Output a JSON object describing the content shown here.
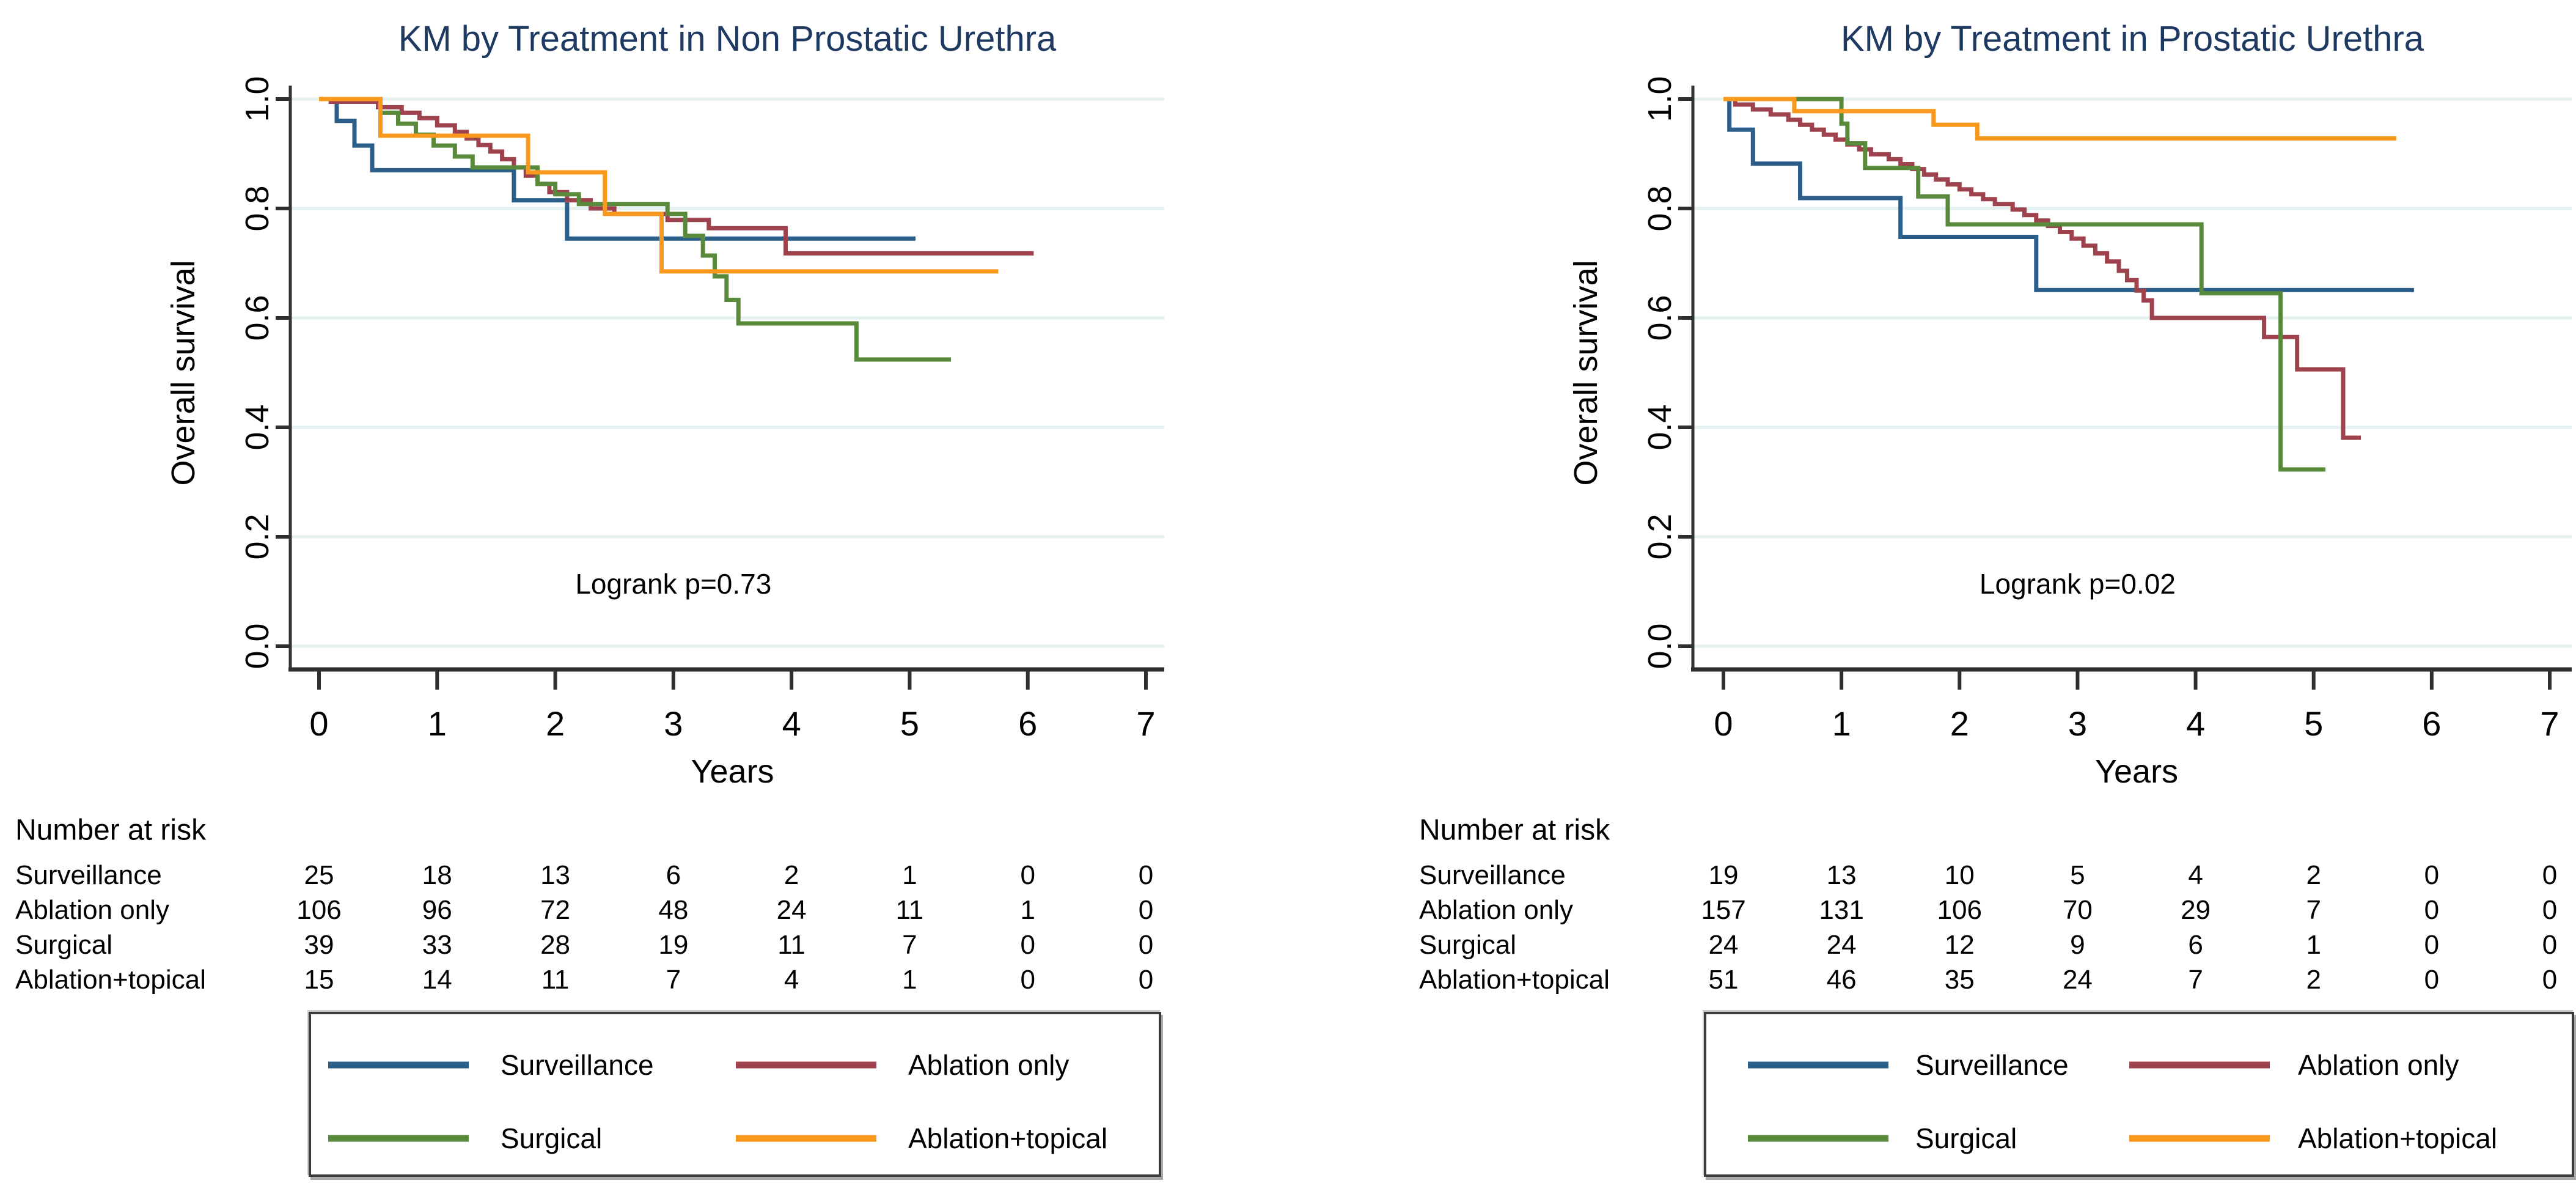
{
  "page": {
    "background": "#ffffff"
  },
  "colors": {
    "title_text": "#1e3a62",
    "axis_line": "#333333",
    "tick_text": "#000000",
    "gridline": "#e5f0f0",
    "legend_border": "#3b3b3b",
    "surveillance": "#2b5f8a",
    "ablation_only": "#9e424e",
    "surgical": "#598a3c",
    "ablation_topical": "#f8981d"
  },
  "panels": [
    {
      "title": "KM by Treatment in Non Prostatic Urethra",
      "ylabel": "Overall survival",
      "xlabel": "Years",
      "annotation": "Logrank p=0.73",
      "risk_header": "Number at risk",
      "x_ticks": [
        "0",
        "1",
        "2",
        "3",
        "4",
        "5",
        "6",
        "7"
      ],
      "y_ticks": [
        "0.0",
        "0.2",
        "0.4",
        "0.6",
        "0.8",
        "1.0"
      ],
      "risk_rows": [
        {
          "label": "Surveillance",
          "counts": [
            25,
            18,
            13,
            6,
            2,
            1,
            0,
            0
          ]
        },
        {
          "label": "Ablation only",
          "counts": [
            106,
            96,
            72,
            48,
            24,
            11,
            1,
            0
          ]
        },
        {
          "label": "Surgical",
          "counts": [
            39,
            33,
            28,
            19,
            11,
            7,
            0,
            0
          ]
        },
        {
          "label": "Ablation+topical",
          "counts": [
            15,
            14,
            11,
            7,
            4,
            1,
            0,
            0
          ]
        }
      ],
      "legend": [
        {
          "label": "Surveillance",
          "color": "#2b5f8a"
        },
        {
          "label": "Ablation only",
          "color": "#9e424e"
        },
        {
          "label": "Surgical",
          "color": "#598a3c"
        },
        {
          "label": "Ablation+topical",
          "color": "#f8981d"
        }
      ]
    },
    {
      "title": "KM by Treatment in Prostatic Urethra",
      "ylabel": "Overall survival",
      "xlabel": "Years",
      "annotation": "Logrank p=0.02",
      "risk_header": "Number at risk",
      "x_ticks": [
        "0",
        "1",
        "2",
        "3",
        "4",
        "5",
        "6",
        "7"
      ],
      "y_ticks": [
        "0.0",
        "0.2",
        "0.4",
        "0.6",
        "0.8",
        "1.0"
      ],
      "risk_rows": [
        {
          "label": "Surveillance",
          "counts": [
            19,
            13,
            10,
            5,
            4,
            2,
            0,
            0
          ]
        },
        {
          "label": "Ablation only",
          "counts": [
            157,
            131,
            106,
            70,
            29,
            7,
            0,
            0
          ]
        },
        {
          "label": "Surgical",
          "counts": [
            24,
            24,
            12,
            9,
            6,
            1,
            0,
            0
          ]
        },
        {
          "label": "Ablation+topical",
          "counts": [
            51,
            46,
            35,
            24,
            7,
            2,
            0,
            0
          ]
        }
      ],
      "legend": [
        {
          "label": "Surveillance",
          "color": "#2b5f8a"
        },
        {
          "label": "Ablation only",
          "color": "#9e424e"
        },
        {
          "label": "Surgical",
          "color": "#598a3c"
        },
        {
          "label": "Ablation+topical",
          "color": "#f8981d"
        }
      ]
    }
  ],
  "chart_data": [
    {
      "type": "line",
      "subtype": "kaplan-meier-step",
      "title": "KM by Treatment in Non Prostatic Urethra",
      "xlabel": "Years",
      "ylabel": "Overall survival",
      "annotation": "Logrank p=0.73",
      "xlim": [
        0,
        7
      ],
      "ylim": [
        0.0,
        1.0
      ],
      "x_ticks": [
        0,
        1,
        2,
        3,
        4,
        5,
        6,
        7
      ],
      "y_ticks": [
        0.0,
        0.2,
        0.4,
        0.6,
        0.8,
        1.0
      ],
      "grid": true,
      "legend_position": "bottom",
      "series": [
        {
          "name": "Surveillance",
          "color": "#2b5f8a",
          "steps": [
            [
              0,
              1.0
            ],
            [
              0.15,
              0.96
            ],
            [
              0.3,
              0.915
            ],
            [
              0.45,
              0.87
            ],
            [
              1.65,
              0.815
            ],
            [
              2.1,
              0.745
            ],
            [
              5.05,
              0.745
            ]
          ]
        },
        {
          "name": "Ablation only",
          "color": "#9e424e",
          "steps": [
            [
              0,
              1.0
            ],
            [
              0.1,
              0.995
            ],
            [
              0.5,
              0.985
            ],
            [
              0.7,
              0.975
            ],
            [
              0.85,
              0.965
            ],
            [
              1.0,
              0.952
            ],
            [
              1.15,
              0.94
            ],
            [
              1.25,
              0.928
            ],
            [
              1.35,
              0.916
            ],
            [
              1.45,
              0.904
            ],
            [
              1.55,
              0.89
            ],
            [
              1.65,
              0.875
            ],
            [
              1.75,
              0.86
            ],
            [
              1.85,
              0.845
            ],
            [
              1.95,
              0.83
            ],
            [
              2.1,
              0.815
            ],
            [
              2.3,
              0.8
            ],
            [
              2.5,
              0.79
            ],
            [
              2.95,
              0.779
            ],
            [
              3.3,
              0.764
            ],
            [
              3.95,
              0.718
            ],
            [
              6.05,
              0.718
            ]
          ]
        },
        {
          "name": "Surgical",
          "color": "#598a3c",
          "steps": [
            [
              0,
              1.0
            ],
            [
              0.52,
              0.975
            ],
            [
              0.67,
              0.955
            ],
            [
              0.82,
              0.935
            ],
            [
              0.97,
              0.915
            ],
            [
              1.15,
              0.895
            ],
            [
              1.3,
              0.875
            ],
            [
              1.85,
              0.845
            ],
            [
              2.0,
              0.826
            ],
            [
              2.2,
              0.808
            ],
            [
              2.95,
              0.79
            ],
            [
              3.1,
              0.75
            ],
            [
              3.25,
              0.714
            ],
            [
              3.35,
              0.676
            ],
            [
              3.45,
              0.633
            ],
            [
              3.55,
              0.59
            ],
            [
              4.55,
              0.524
            ],
            [
              5.35,
              0.524
            ]
          ]
        },
        {
          "name": "Ablation+topical",
          "color": "#f8981d",
          "steps": [
            [
              0,
              1.0
            ],
            [
              0.52,
              0.933
            ],
            [
              1.77,
              0.866
            ],
            [
              2.42,
              0.79
            ],
            [
              2.9,
              0.685
            ],
            [
              5.75,
              0.685
            ]
          ]
        }
      ],
      "number_at_risk": {
        "times": [
          0,
          1,
          2,
          3,
          4,
          5,
          6,
          7
        ],
        "rows": [
          {
            "name": "Surveillance",
            "counts": [
              25,
              18,
              13,
              6,
              2,
              1,
              0,
              0
            ]
          },
          {
            "name": "Ablation only",
            "counts": [
              106,
              96,
              72,
              48,
              24,
              11,
              1,
              0
            ]
          },
          {
            "name": "Surgical",
            "counts": [
              39,
              33,
              28,
              19,
              11,
              7,
              0,
              0
            ]
          },
          {
            "name": "Ablation+topical",
            "counts": [
              15,
              14,
              11,
              7,
              4,
              1,
              0,
              0
            ]
          }
        ]
      }
    },
    {
      "type": "line",
      "subtype": "kaplan-meier-step",
      "title": "KM by Treatment in Prostatic Urethra",
      "xlabel": "Years",
      "ylabel": "Overall survival",
      "annotation": "Logrank p=0.02",
      "xlim": [
        0,
        7
      ],
      "ylim": [
        0.0,
        1.0
      ],
      "x_ticks": [
        0,
        1,
        2,
        3,
        4,
        5,
        6,
        7
      ],
      "y_ticks": [
        0.0,
        0.2,
        0.4,
        0.6,
        0.8,
        1.0
      ],
      "grid": true,
      "legend_position": "bottom",
      "series": [
        {
          "name": "Surveillance",
          "color": "#2b5f8a",
          "steps": [
            [
              0,
              1.0
            ],
            [
              0.05,
              0.944
            ],
            [
              0.25,
              0.882
            ],
            [
              0.65,
              0.819
            ],
            [
              1.5,
              0.748
            ],
            [
              2.65,
              0.651
            ],
            [
              5.85,
              0.651
            ]
          ]
        },
        {
          "name": "Ablation only",
          "color": "#9e424e",
          "steps": [
            [
              0,
              1.0
            ],
            [
              0.1,
              0.99
            ],
            [
              0.25,
              0.981
            ],
            [
              0.4,
              0.972
            ],
            [
              0.55,
              0.962
            ],
            [
              0.65,
              0.953
            ],
            [
              0.75,
              0.944
            ],
            [
              0.85,
              0.935
            ],
            [
              0.95,
              0.926
            ],
            [
              1.05,
              0.917
            ],
            [
              1.15,
              0.908
            ],
            [
              1.25,
              0.899
            ],
            [
              1.4,
              0.89
            ],
            [
              1.5,
              0.881
            ],
            [
              1.6,
              0.872
            ],
            [
              1.7,
              0.862
            ],
            [
              1.8,
              0.853
            ],
            [
              1.9,
              0.844
            ],
            [
              2.0,
              0.835
            ],
            [
              2.1,
              0.826
            ],
            [
              2.2,
              0.817
            ],
            [
              2.3,
              0.808
            ],
            [
              2.45,
              0.798
            ],
            [
              2.55,
              0.788
            ],
            [
              2.65,
              0.778
            ],
            [
              2.75,
              0.768
            ],
            [
              2.85,
              0.757
            ],
            [
              2.95,
              0.745
            ],
            [
              3.05,
              0.732
            ],
            [
              3.15,
              0.718
            ],
            [
              3.25,
              0.703
            ],
            [
              3.35,
              0.686
            ],
            [
              3.42,
              0.669
            ],
            [
              3.5,
              0.65
            ],
            [
              3.56,
              0.632
            ],
            [
              3.63,
              0.6
            ],
            [
              4.58,
              0.565
            ],
            [
              4.86,
              0.506
            ],
            [
              5.25,
              0.381
            ],
            [
              5.4,
              0.381
            ]
          ]
        },
        {
          "name": "Surgical",
          "color": "#598a3c",
          "steps": [
            [
              0,
              1.0
            ],
            [
              1.0,
              0.955
            ],
            [
              1.05,
              0.919
            ],
            [
              1.2,
              0.874
            ],
            [
              1.65,
              0.822
            ],
            [
              1.9,
              0.771
            ],
            [
              4.05,
              0.645
            ],
            [
              4.72,
              0.323
            ],
            [
              5.1,
              0.323
            ]
          ]
        },
        {
          "name": "Ablation+topical",
          "color": "#f8981d",
          "steps": [
            [
              0,
              1.0
            ],
            [
              0.6,
              0.978
            ],
            [
              1.78,
              0.953
            ],
            [
              2.15,
              0.928
            ],
            [
              5.7,
              0.928
            ]
          ]
        }
      ],
      "number_at_risk": {
        "times": [
          0,
          1,
          2,
          3,
          4,
          5,
          6,
          7
        ],
        "rows": [
          {
            "name": "Surveillance",
            "counts": [
              19,
              13,
              10,
              5,
              4,
              2,
              0,
              0
            ]
          },
          {
            "name": "Ablation only",
            "counts": [
              157,
              131,
              106,
              70,
              29,
              7,
              0,
              0
            ]
          },
          {
            "name": "Surgical",
            "counts": [
              24,
              24,
              12,
              9,
              6,
              1,
              0,
              0
            ]
          },
          {
            "name": "Ablation+topical",
            "counts": [
              51,
              46,
              35,
              24,
              7,
              2,
              0,
              0
            ]
          }
        ]
      }
    }
  ]
}
